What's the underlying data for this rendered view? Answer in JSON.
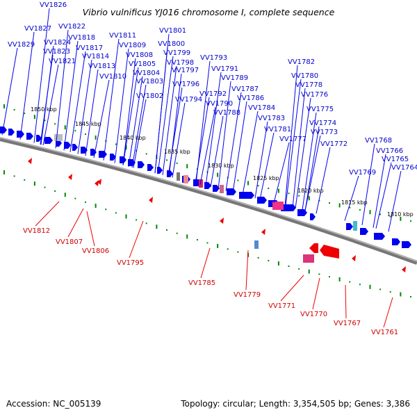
{
  "title": "Vibrio vulnificus YJ016 chromosome I, complete sequence",
  "accession_text": "Accession: NC_005139",
  "summary_text": "Topology: circular; Length: 3,354,505 bp; Genes: 3,386",
  "colors": {
    "forward_gene": "#0000ee",
    "reverse_gene": "#ee0000",
    "forward_label": "#0000cc",
    "reverse_label": "#cc0000",
    "backbone": "#888888",
    "tick": "#008800",
    "tick_label": "#000000"
  },
  "scale_ticks": [
    "1850 kbp",
    "1845 kbp",
    "1840 kbp",
    "1835 kbp",
    "1830 kbp",
    "1825 kbp",
    "1820 kbp",
    "1815 kbp",
    "1810 kbp"
  ],
  "forward_genes": [
    "VV1826",
    "VV1827",
    "VV1822",
    "VV1829",
    "VV1818",
    "VV1824",
    "VV1811",
    "VV1801",
    "VV1823",
    "VV1817",
    "VV1809",
    "VV1800",
    "VV1821",
    "VV1814",
    "VV1808",
    "VV1799",
    "VV1793",
    "VV1813",
    "VV1805",
    "VV1798",
    "VV1782",
    "VV1810",
    "VV1804",
    "VV1797",
    "VV1791",
    "VV1803",
    "VV1789",
    "VV1780",
    "VV1796",
    "VV1778",
    "VV1787",
    "VV1792",
    "VV1802",
    "VV1776",
    "VV1786",
    "VV1794",
    "VV1790",
    "VV1775",
    "VV1788",
    "VV1784",
    "VV1774",
    "VV1783",
    "VV1773",
    "VV1781",
    "VV1768",
    "VV1777",
    "VV1772",
    "VV1766",
    "VV1765",
    "VV1769",
    "VV1764"
  ],
  "reverse_genes": [
    "VV1812",
    "VV1807",
    "VV1806",
    "VV1795",
    "VV1785",
    "VV1779",
    "VV1771",
    "VV1770",
    "VV1767",
    "VV1761"
  ]
}
